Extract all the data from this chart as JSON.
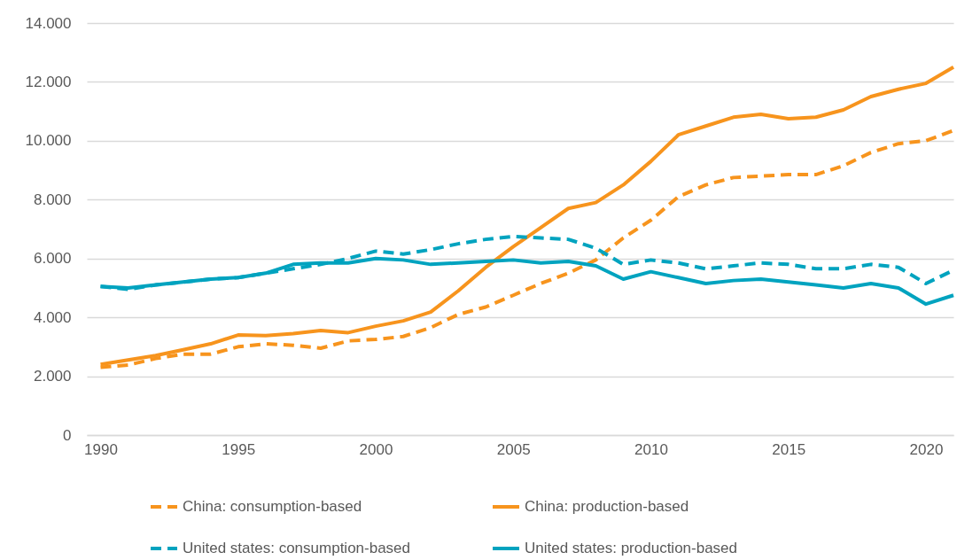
{
  "chart_data": {
    "type": "line",
    "x": [
      1990,
      1991,
      1992,
      1993,
      1994,
      1995,
      1996,
      1997,
      1998,
      1999,
      2000,
      2001,
      2002,
      2003,
      2004,
      2005,
      2006,
      2007,
      2008,
      2009,
      2010,
      2011,
      2012,
      2013,
      2014,
      2015,
      2016,
      2017,
      2018,
      2019,
      2020,
      2021
    ],
    "xlim": [
      1989.5,
      2021
    ],
    "xticks": [
      1990,
      1995,
      2000,
      2005,
      2010,
      2015,
      2020
    ],
    "ylim": [
      0,
      14000
    ],
    "yticks": [
      0,
      {
        "value": 2000,
        "label": "2.000"
      },
      {
        "value": 4000,
        "label": "4.000"
      },
      {
        "value": 6000,
        "label": "6.000"
      },
      {
        "value": 8000,
        "label": "8.000"
      },
      {
        "value": 10000,
        "label": "10.000"
      },
      {
        "value": 12000,
        "label": "12.000"
      },
      {
        "value": 14000,
        "label": "14.000"
      }
    ],
    "grid": "y",
    "legend": "bottom",
    "series": [
      {
        "name": "China: consumption-based",
        "color": "#f7941d",
        "line_style": "dashed",
        "values": [
          2300,
          2380,
          2600,
          2750,
          2750,
          3000,
          3100,
          3050,
          2950,
          3200,
          3250,
          3350,
          3650,
          4100,
          4350,
          4750,
          5150,
          5500,
          5950,
          6700,
          7300,
          8100,
          8500,
          8750,
          8800,
          8850,
          8850,
          9150,
          9600,
          9900,
          10000,
          10350
        ]
      },
      {
        "name": "China: production-based",
        "color": "#f7941d",
        "line_style": "solid",
        "values": [
          2400,
          2550,
          2700,
          2900,
          3100,
          3400,
          3380,
          3450,
          3550,
          3480,
          3700,
          3880,
          4180,
          4900,
          5700,
          6400,
          7050,
          7700,
          7900,
          8500,
          9300,
          10200,
          10500,
          10800,
          10900,
          10750,
          10800,
          11050,
          11500,
          11750,
          11950,
          12500
        ]
      },
      {
        "name": "United states: consumption-based",
        "color": "#00a3bf",
        "line_style": "dashed",
        "values": [
          5050,
          4950,
          5100,
          5200,
          5300,
          5350,
          5500,
          5650,
          5800,
          6000,
          6250,
          6150,
          6300,
          6500,
          6650,
          6750,
          6700,
          6650,
          6350,
          5800,
          5950,
          5850,
          5650,
          5750,
          5850,
          5800,
          5650,
          5650,
          5800,
          5700,
          5150,
          5600
        ]
      },
      {
        "name": "United states: production-based",
        "color": "#00a3bf",
        "line_style": "solid",
        "values": [
          5050,
          5000,
          5100,
          5200,
          5300,
          5350,
          5500,
          5800,
          5850,
          5850,
          6000,
          5950,
          5800,
          5850,
          5900,
          5950,
          5850,
          5900,
          5750,
          5300,
          5550,
          5350,
          5150,
          5250,
          5300,
          5200,
          5100,
          5000,
          5150,
          5000,
          4450,
          4750
        ]
      }
    ]
  }
}
